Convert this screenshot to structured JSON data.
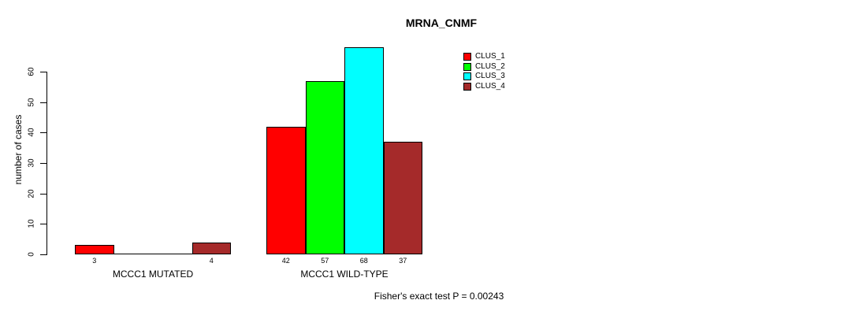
{
  "chart_data": {
    "type": "bar",
    "title": "MRNA_CNMF",
    "ylabel": "number of cases",
    "ylim": [
      0,
      60
    ],
    "yticks": [
      0,
      10,
      20,
      30,
      40,
      50,
      60
    ],
    "grid": false,
    "legend_position": "top-right",
    "series": [
      {
        "name": "CLUS_1",
        "color": "#ff0000"
      },
      {
        "name": "CLUS_2",
        "color": "#00ff00"
      },
      {
        "name": "CLUS_3",
        "color": "#00ffff"
      },
      {
        "name": "CLUS_4",
        "color": "#a52a2a"
      }
    ],
    "groups": [
      {
        "label": "MCCC1 MUTATED",
        "values": [
          3,
          0,
          0,
          4
        ],
        "value_labels": [
          "3",
          "",
          "",
          "4"
        ]
      },
      {
        "label": "MCCC1 WILD-TYPE",
        "values": [
          42,
          57,
          68,
          37
        ],
        "value_labels": [
          "42",
          "57",
          "68",
          "37"
        ]
      }
    ],
    "footnote": "Fisher's exact test P = 0.00243"
  }
}
